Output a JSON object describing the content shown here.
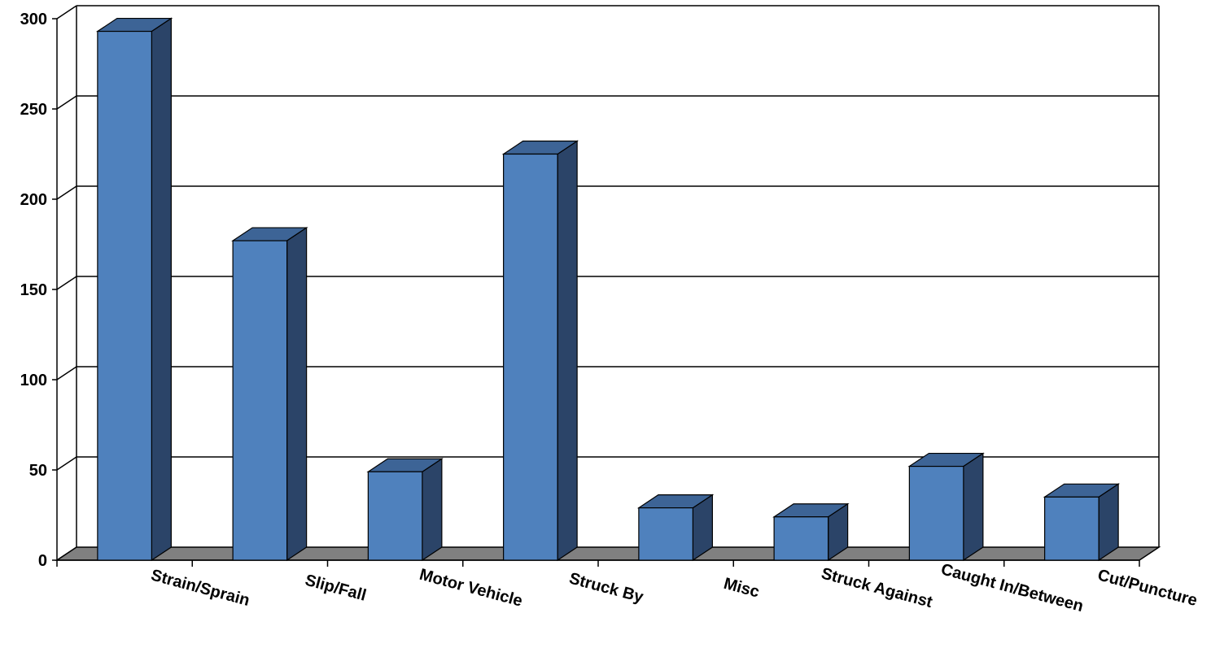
{
  "chart_data": {
    "type": "bar",
    "title": "",
    "xlabel": "",
    "ylabel": "",
    "categories": [
      "Strain/Sprain",
      "Slip/Fall",
      "Motor Vehicle",
      "Struck By",
      "Misc",
      "Struck Against",
      "Caught In/Between",
      "Cut/Puncture"
    ],
    "values": [
      293,
      177,
      49,
      225,
      29,
      24,
      52,
      35
    ],
    "ylim": [
      0,
      300
    ],
    "yticks": [
      "0",
      "50",
      "100",
      "150",
      "200",
      "250",
      "300"
    ],
    "grid": true,
    "legend": "none",
    "style": "3d-column",
    "colors": {
      "bar_front": "#4f81bd",
      "bar_side": "#2b4468",
      "bar_top": "#3d6496",
      "floor": "#808080",
      "gridline": "#000000"
    }
  }
}
